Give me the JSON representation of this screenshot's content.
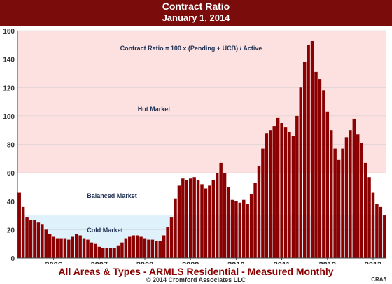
{
  "header": {
    "title": "Contract Ratio",
    "subtitle": "January 1, 2014"
  },
  "footer": {
    "title": "All Areas & Types - ARMLS Residential - Measured Monthly",
    "copyright": "© 2014 Cromford Associates LLC",
    "code": "CRA5"
  },
  "colors": {
    "header_bg": "#7a0c0c",
    "bar": "#8b0000",
    "hot_zone": "#fde0e0",
    "cold_zone": "#dff1fa",
    "zone_label": "#223355"
  },
  "chart_data": {
    "type": "bar",
    "formula": "Contract Ratio = 100 x (Pending + UCB) / Active",
    "zones": [
      {
        "name": "Hot Market",
        "from": 60,
        "to": 160
      },
      {
        "name": "Balanced Market",
        "from": 30,
        "to": 60
      },
      {
        "name": "Cold Market",
        "from": 0,
        "to": 30
      }
    ],
    "ylim": [
      0,
      160
    ],
    "yticks": [
      0,
      20,
      40,
      60,
      80,
      100,
      120,
      140,
      160
    ],
    "grid": true,
    "xticks": [
      {
        "label": "2006",
        "index": 9
      },
      {
        "label": "2007",
        "index": 21
      },
      {
        "label": "2008",
        "index": 33
      },
      {
        "label": "2009",
        "index": 45
      },
      {
        "label": "2010",
        "index": 57
      },
      {
        "label": "2011",
        "index": 69
      },
      {
        "label": "2012",
        "index": 81
      },
      {
        "label": "2013",
        "index": 93
      }
    ],
    "values": [
      46,
      36,
      29,
      27,
      27,
      25,
      24,
      20,
      17,
      15,
      14,
      14,
      14,
      13,
      15,
      17,
      16,
      14,
      13,
      11,
      10,
      8,
      7,
      7,
      7,
      7,
      9,
      11,
      14,
      15,
      16,
      16,
      15,
      14,
      13,
      13,
      12,
      12,
      16,
      22,
      29,
      42,
      51,
      56,
      55,
      56,
      57,
      55,
      52,
      49,
      51,
      55,
      60,
      67,
      60,
      50,
      41,
      40,
      39,
      41,
      38,
      45,
      53,
      65,
      77,
      88,
      90,
      93,
      99,
      95,
      92,
      89,
      86,
      100,
      120,
      138,
      150,
      153,
      131,
      126,
      118,
      103,
      90,
      77,
      69,
      77,
      85,
      90,
      98,
      87,
      81,
      67,
      57,
      46,
      38,
      36,
      30
    ]
  }
}
